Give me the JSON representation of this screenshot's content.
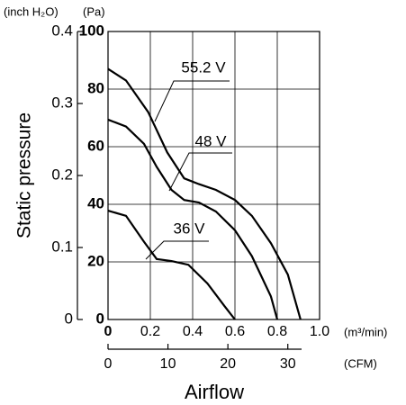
{
  "chart_data": {
    "type": "line",
    "ylabel": "Static pressure",
    "xlabel": "Airflow",
    "yunit": "(Pa)",
    "y2unit": "(inch H₂O)",
    "xunit": "(m³/min)",
    "x2unit": "(CFM)",
    "xlim": [
      0,
      1
    ],
    "xticks": [
      0,
      0.2,
      0.4,
      0.6,
      0.8,
      {
        "value": 1,
        "label": "1.0"
      }
    ],
    "x2lim": [
      0,
      35.3
    ],
    "x2ticks": [
      0,
      10,
      20,
      30
    ],
    "ylim": [
      0,
      100
    ],
    "yticks": [
      0,
      20,
      40,
      60,
      80,
      100
    ],
    "y2lim": [
      0,
      0.4
    ],
    "y2ticks": [
      0,
      0.1,
      0.2,
      0.3,
      0.4
    ],
    "grid": true,
    "series": [
      {
        "name": "55.2 V",
        "color": "#000000",
        "x": [
          0,
          0.085,
          0.19,
          0.28,
          0.36,
          0.43,
          0.51,
          0.6,
          0.68,
          0.77,
          0.85,
          0.91
        ],
        "values": [
          87,
          83,
          72,
          58,
          49,
          47,
          45,
          41.5,
          36,
          26.5,
          15.6,
          0
        ]
      },
      {
        "name": "48 V",
        "color": "#000000",
        "x": [
          0,
          0.085,
          0.17,
          0.23,
          0.3,
          0.36,
          0.43,
          0.51,
          0.6,
          0.68,
          0.77,
          0.8
        ],
        "values": [
          69.4,
          67,
          61,
          53,
          45,
          41.5,
          40.6,
          37.5,
          31,
          22,
          8,
          0
        ]
      },
      {
        "name": "36 V",
        "color": "#000000",
        "x": [
          0,
          0.085,
          0.17,
          0.23,
          0.3,
          0.38,
          0.47,
          0.55,
          0.6
        ],
        "values": [
          37.8,
          36,
          27,
          21,
          20.3,
          19,
          12.5,
          4.7,
          0
        ]
      }
    ]
  }
}
